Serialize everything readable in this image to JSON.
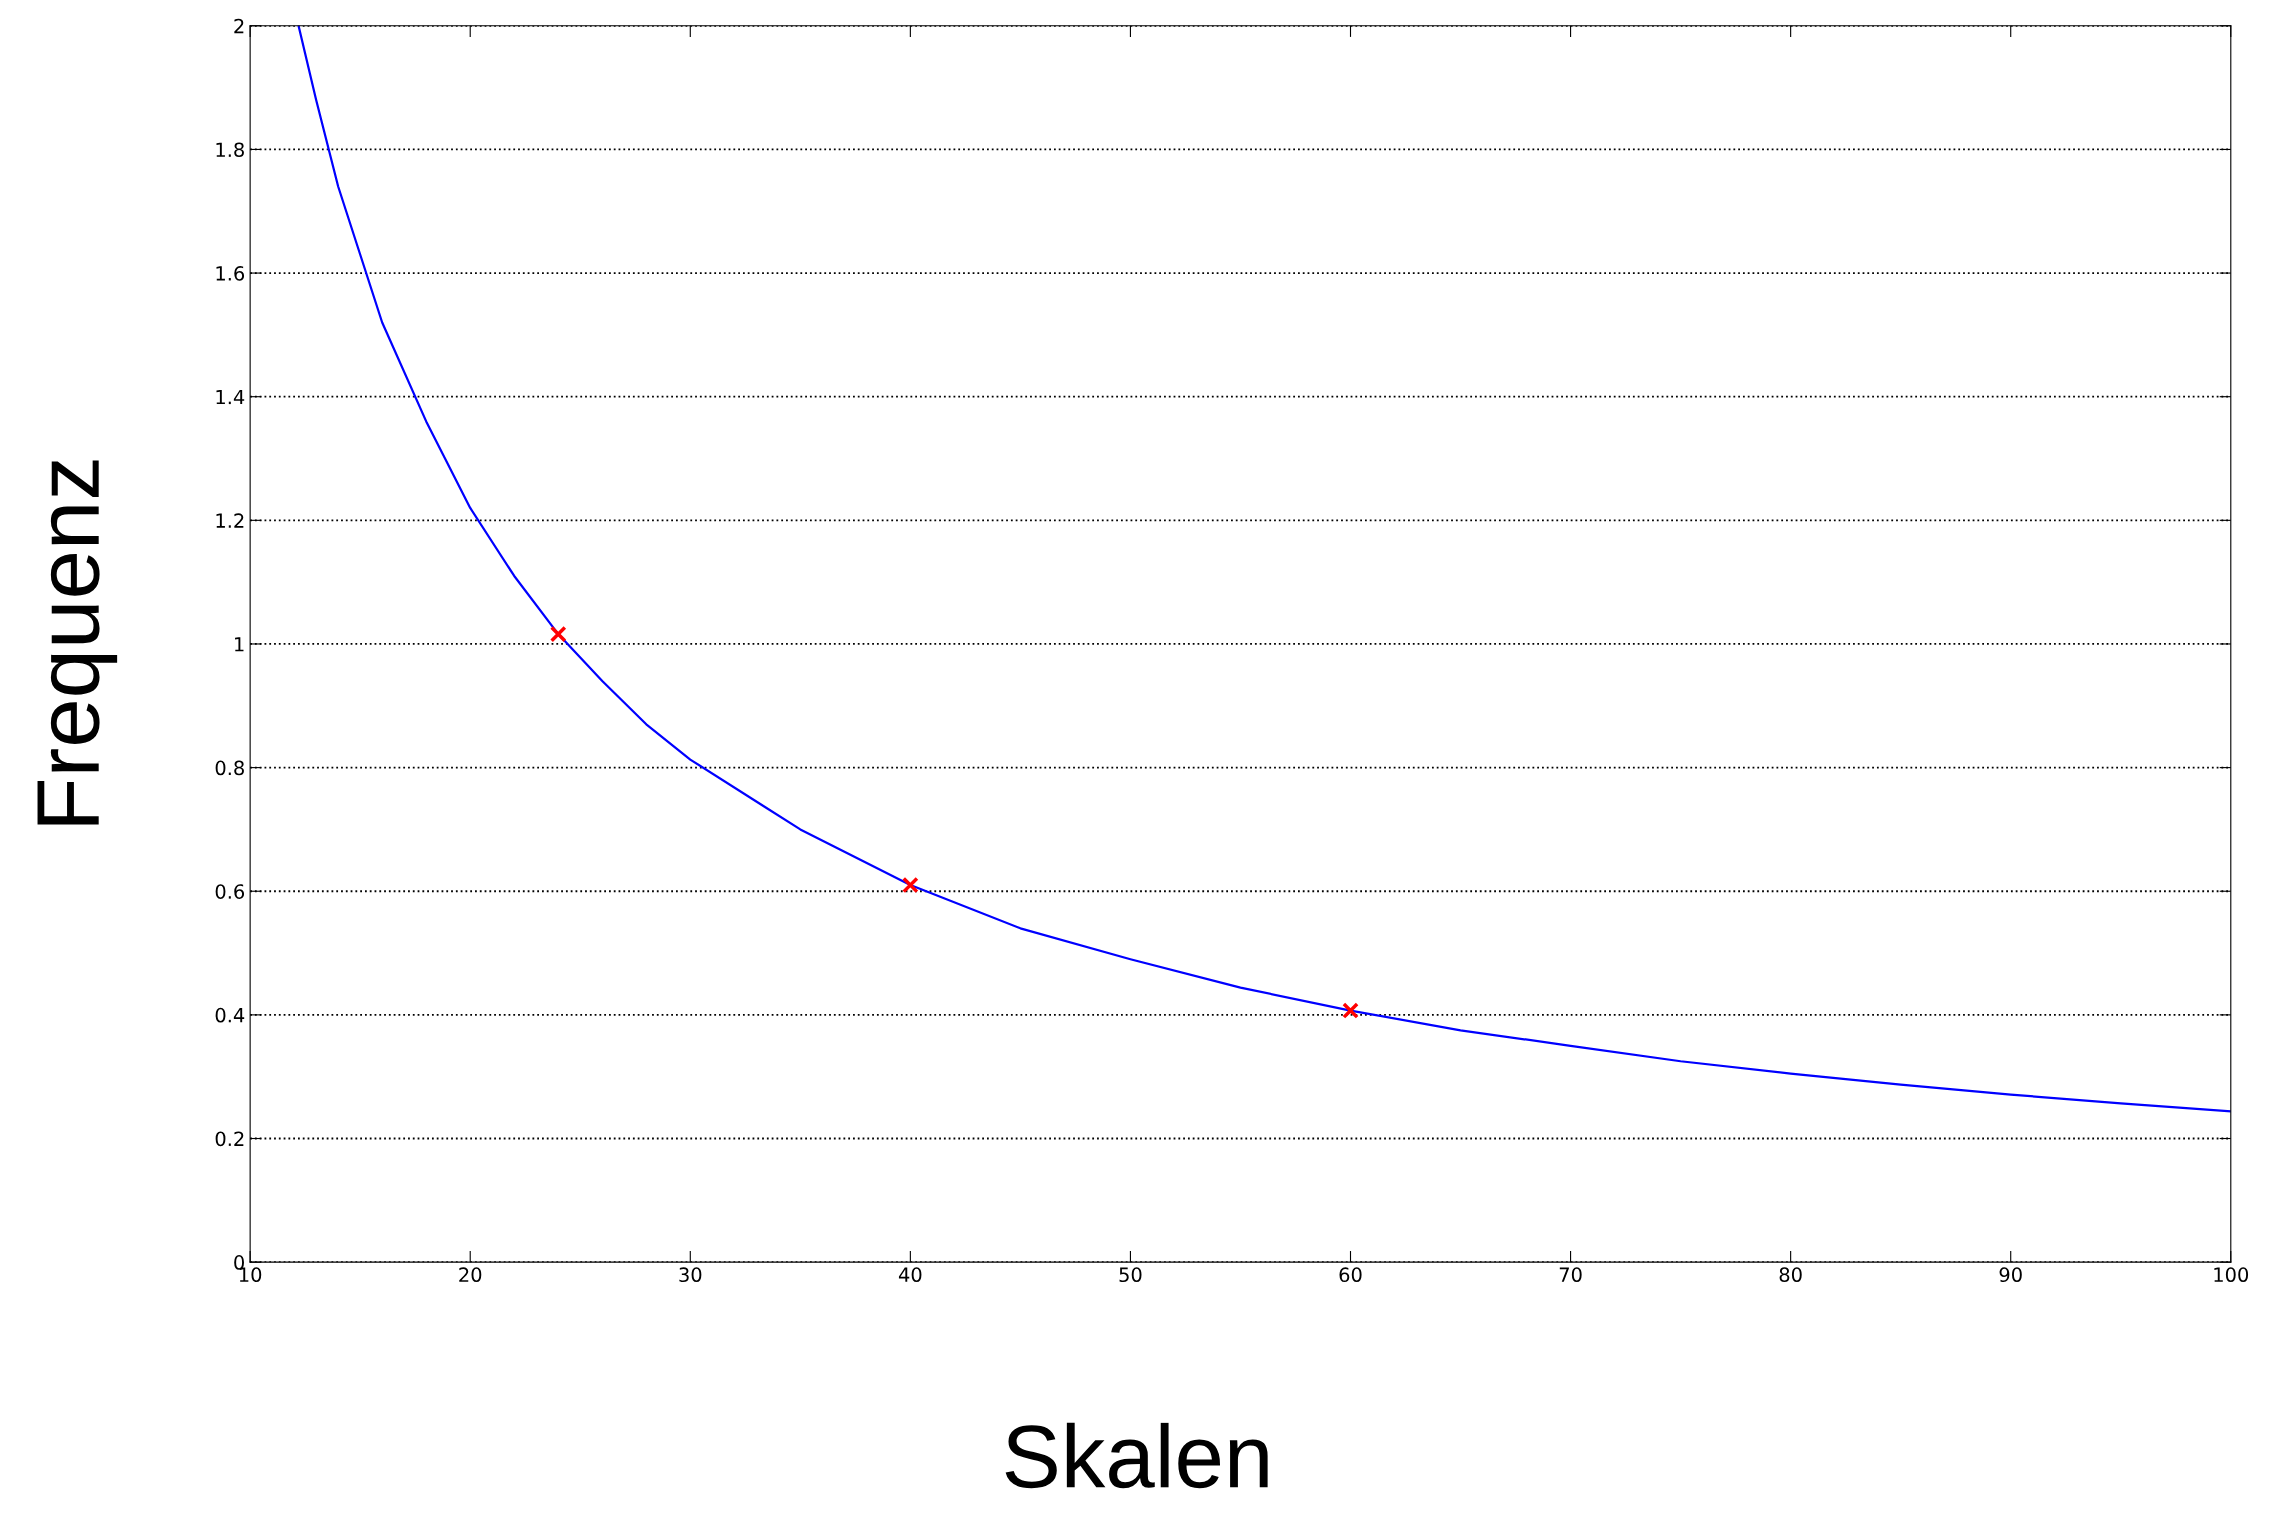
{
  "chart_data": {
    "type": "line",
    "xlabel": "Skalen",
    "ylabel": "Frequenz",
    "xlim": [
      10,
      100
    ],
    "xticks": [
      10,
      20,
      30,
      40,
      50,
      60,
      70,
      80,
      90,
      100
    ],
    "ylim": [
      0,
      2
    ],
    "yticks": [
      0,
      {
        "value": 0.2,
        "label": "0.2"
      },
      {
        "value": 0.4,
        "label": "0.4"
      },
      {
        "value": 0.6,
        "label": "0.6"
      },
      {
        "value": 0.8,
        "label": "0.8"
      },
      1,
      {
        "value": 1.2,
        "label": "1.2"
      },
      {
        "value": 1.4,
        "label": "1.4"
      },
      {
        "value": 1.6,
        "label": "1.6"
      },
      {
        "value": 1.8,
        "label": "1.8"
      },
      2
    ],
    "grid": "y",
    "series": [
      {
        "color": "#0000ff",
        "marker": "none",
        "line_style": "solid",
        "x": [
          12.2,
          13,
          14,
          15,
          16,
          18,
          20,
          22,
          24,
          26,
          28,
          30,
          35,
          40,
          45,
          50,
          55,
          60,
          65,
          70,
          75,
          80,
          85,
          90,
          95,
          100
        ],
        "values": [
          2.0,
          1.88,
          1.74,
          1.63,
          1.52,
          1.36,
          1.22,
          1.11,
          1.016,
          0.94,
          0.87,
          0.813,
          0.7,
          0.61,
          0.54,
          0.49,
          0.444,
          0.407,
          0.375,
          0.35,
          0.325,
          0.305,
          0.287,
          0.271,
          0.257,
          0.244
        ]
      },
      {
        "type": "scatter",
        "color": "#ff0000",
        "marker": "cross",
        "x": [
          24,
          40,
          60
        ],
        "values": [
          1.016,
          0.61,
          0.407
        ]
      }
    ]
  }
}
